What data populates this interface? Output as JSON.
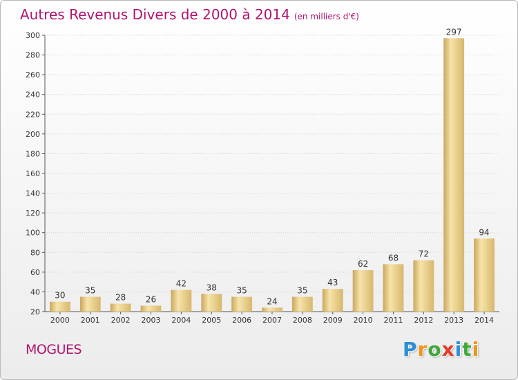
{
  "title": "Autres Revenus Divers de 2000 à 2014",
  "subtitle": "(en milliers d'€)",
  "commune": "MOGUES",
  "logo": {
    "letters": [
      "P",
      "r",
      "o",
      "x",
      "i",
      "t",
      "i"
    ],
    "colors": [
      "#2c8fd6",
      "#f0941e",
      "#3fa83a",
      "#e23b2c",
      "#2c8fd6",
      "#3fa83a",
      "#f0941e"
    ]
  },
  "colors": {
    "title": "#b0146e",
    "bar_light": "#f7e3a8",
    "bar_dark": "#c9a75e"
  },
  "chart_data": {
    "type": "bar",
    "categories": [
      "2000",
      "2001",
      "2002",
      "2003",
      "2004",
      "2005",
      "2006",
      "2007",
      "2008",
      "2009",
      "2010",
      "2011",
      "2012",
      "2013",
      "2014"
    ],
    "values": [
      30,
      35,
      28,
      26,
      42,
      38,
      35,
      24,
      35,
      43,
      62,
      68,
      72,
      297,
      94
    ],
    "ylim": [
      20,
      300
    ],
    "yticks": [
      20,
      40,
      60,
      80,
      100,
      120,
      140,
      160,
      180,
      200,
      220,
      240,
      260,
      280,
      300
    ],
    "grid": true
  }
}
